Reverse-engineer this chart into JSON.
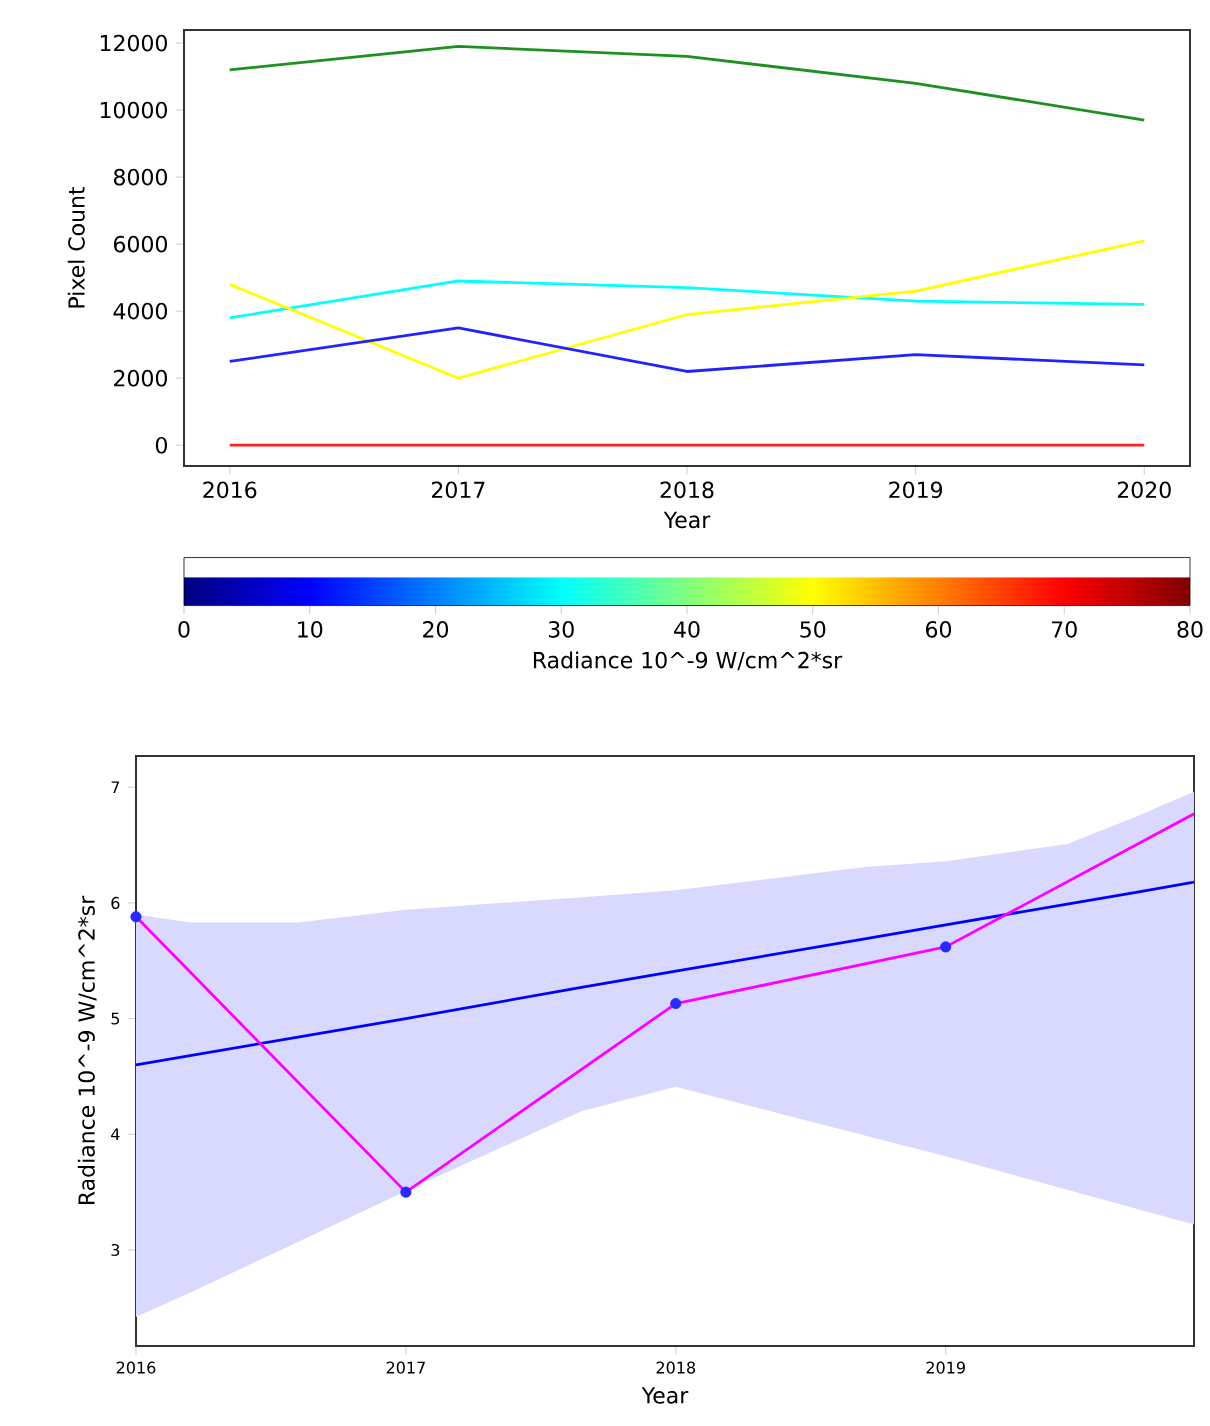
{
  "chart_data": [
    {
      "type": "line",
      "xlabel": "Year",
      "ylabel": "Pixel Count",
      "x": [
        2016,
        2017,
        2018,
        2019,
        2020
      ],
      "xlim": [
        2015.8,
        2020.2
      ],
      "xticks": [
        2016,
        2017,
        2018,
        2019,
        2020
      ],
      "ylim": [
        -620,
        12390
      ],
      "yticks": [
        0,
        2000,
        4000,
        6000,
        8000,
        10000,
        12000
      ],
      "clim": [
        0,
        80
      ],
      "cticks": [
        0,
        10,
        20,
        30,
        40,
        50,
        60,
        70,
        80
      ],
      "clabel": "Radiance 10^-9 W/cm^2*sr",
      "series": [
        {
          "color": "#1f8f1f",
          "values": [
            11200,
            11900,
            11600,
            10800,
            9700
          ]
        },
        {
          "color": "#00ffff",
          "values": [
            3800,
            4900,
            4700,
            4300,
            4200
          ]
        },
        {
          "color": "#ffff00",
          "values": [
            4800,
            2000,
            3900,
            4600,
            6100
          ]
        },
        {
          "color": "#2222ff",
          "values": [
            2500,
            3500,
            2200,
            2700,
            2400
          ]
        },
        {
          "color": "#ff2020",
          "values": [
            0,
            0,
            0,
            0,
            0
          ]
        }
      ]
    },
    {
      "type": "line",
      "xlabel": "Year",
      "ylabel": "Radiance 10^-9 W/cm^2*sr",
      "xlim": [
        2016,
        2019.92
      ],
      "xticks": [
        2016,
        2017,
        2018,
        2019
      ],
      "ylim": [
        2.17,
        7.27
      ],
      "yticks": [
        3,
        4,
        5,
        6,
        7
      ],
      "series": [
        {
          "type": "line",
          "color": "#0000ff",
          "x": [
            2016,
            2016.2,
            2016.6,
            2017,
            2017.65,
            2018,
            2018.7,
            2019,
            2019.45,
            2019.7,
            2019.92
          ],
          "values": [
            4.6,
            4.68,
            4.84,
            5.0,
            5.27,
            5.41,
            5.69,
            5.81,
            5.99,
            6.09,
            6.18
          ],
          "lower": [
            2.42,
            2.63,
            3.07,
            3.51,
            4.2,
            4.41,
            3.99,
            3.81,
            3.52,
            3.36,
            3.22
          ],
          "upper": [
            5.9,
            5.83,
            5.83,
            5.94,
            6.05,
            6.11,
            6.31,
            6.36,
            6.51,
            6.74,
            6.96
          ]
        },
        {
          "type": "line",
          "color": "#ff00ff",
          "x": [
            2016,
            2017,
            2018,
            2019,
            2019.92
          ],
          "values": [
            5.88,
            3.5,
            5.13,
            5.62,
            6.77
          ]
        },
        {
          "type": "scatter",
          "color": "#2a2aff",
          "marker": "circle",
          "x": [
            2016,
            2017,
            2018,
            2019
          ],
          "values": [
            5.88,
            3.5,
            5.13,
            5.62
          ]
        }
      ]
    }
  ]
}
